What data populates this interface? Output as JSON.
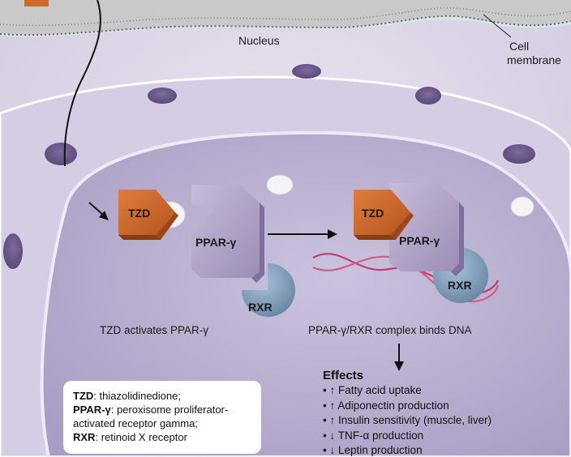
{
  "labels": {
    "nucleus": "Nucleus",
    "cell_membrane_line1": "Cell",
    "cell_membrane_line2": "membrane",
    "tzd": "TZD",
    "ppar": "PPAR-γ",
    "rxr": "RXR",
    "caption_left": "TZD activates PPAR-γ",
    "caption_right": "PPAR-γ/RXR complex binds DNA"
  },
  "effects": {
    "title": "Effects",
    "items": [
      {
        "arrow": "↑",
        "text": "Fatty acid uptake"
      },
      {
        "arrow": "↑",
        "text": "Adiponectin production"
      },
      {
        "arrow": "↑",
        "text": "Insulin sensitivity (muscle, liver)"
      },
      {
        "arrow": "↓",
        "text": "TNF-α production"
      },
      {
        "arrow": "↓",
        "text": "Leptin production"
      }
    ]
  },
  "legend": [
    {
      "term": "TZD",
      "definition": ": thiazolidinedione;"
    },
    {
      "term": "PPAR-γ",
      "definition": ": peroxisome proliferator-activated receptor gamma;"
    },
    {
      "term": "RXR",
      "definition": ": retinoid X receptor"
    }
  ],
  "colors": {
    "tzd": "#d06a2c",
    "ppar": "#b6a9c9",
    "rxr": "#7d9bb6",
    "dna": "#c03c6e",
    "nucleus": "#b9b1d2",
    "cytoplasm": "#d9d3e4",
    "extracellular": "#d6e7ec"
  }
}
